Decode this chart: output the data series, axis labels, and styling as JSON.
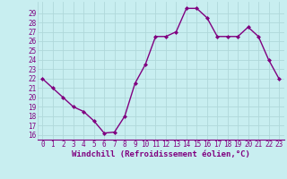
{
  "x": [
    0,
    1,
    2,
    3,
    4,
    5,
    6,
    7,
    8,
    9,
    10,
    11,
    12,
    13,
    14,
    15,
    16,
    17,
    18,
    19,
    20,
    21,
    22,
    23
  ],
  "y": [
    22,
    21,
    20,
    19,
    18.5,
    17.5,
    16.2,
    16.3,
    18,
    21.5,
    23.5,
    26.5,
    26.5,
    27,
    29.5,
    29.5,
    28.5,
    26.5,
    26.5,
    26.5,
    27.5,
    26.5,
    24,
    22
  ],
  "line_color": "#800080",
  "marker": "D",
  "marker_size": 2.0,
  "line_width": 1.0,
  "bg_color": "#c8eef0",
  "grid_color": "#b0d8da",
  "xlabel": "Windchill (Refroidissement éolien,°C)",
  "tick_color": "#800080",
  "yticks": [
    16,
    17,
    18,
    19,
    20,
    21,
    22,
    23,
    24,
    25,
    26,
    27,
    28,
    29
  ],
  "ylim": [
    15.5,
    30.2
  ],
  "xlim": [
    -0.5,
    23.5
  ],
  "xticks": [
    0,
    1,
    2,
    3,
    4,
    5,
    6,
    7,
    8,
    9,
    10,
    11,
    12,
    13,
    14,
    15,
    16,
    17,
    18,
    19,
    20,
    21,
    22,
    23
  ],
  "tick_fontsize": 5.5,
  "label_fontsize": 6.5
}
